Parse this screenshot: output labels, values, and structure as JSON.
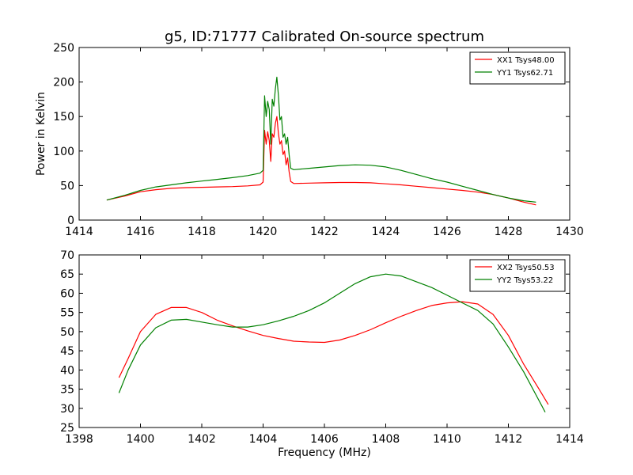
{
  "figure": {
    "title": "g5, ID:71777 Calibrated On-source spectrum"
  },
  "chart_data": [
    {
      "type": "line",
      "ylabel": "Power in Kelvin",
      "xlabel": "",
      "xlim": [
        1414,
        1430
      ],
      "ylim": [
        0,
        250
      ],
      "xticks": [
        "1414",
        "1416",
        "1418",
        "1420",
        "1422",
        "1424",
        "1426",
        "1428",
        "1430"
      ],
      "yticks": [
        "0",
        "50",
        "100",
        "150",
        "200",
        "250"
      ],
      "grid": false,
      "legend_position": "top-right",
      "series": [
        {
          "name": "XX1 Tsys48.00",
          "color": "#ff0000",
          "x": [
            1414.9,
            1415.5,
            1416,
            1416.5,
            1417,
            1417.5,
            1418,
            1418.5,
            1419,
            1419.5,
            1419.9,
            1420.0,
            1420.05,
            1420.1,
            1420.15,
            1420.2,
            1420.25,
            1420.3,
            1420.35,
            1420.4,
            1420.45,
            1420.5,
            1420.55,
            1420.6,
            1420.65,
            1420.7,
            1420.75,
            1420.8,
            1420.85,
            1420.9,
            1421.0,
            1421.5,
            1422,
            1422.5,
            1423,
            1423.5,
            1424,
            1424.5,
            1425,
            1425.5,
            1426,
            1426.5,
            1427,
            1427.5,
            1428,
            1428.5,
            1428.9
          ],
          "y": [
            29,
            35,
            41,
            44,
            46,
            47,
            47.5,
            48,
            48.5,
            49.5,
            51,
            55,
            130,
            110,
            128,
            115,
            85,
            125,
            120,
            140,
            150,
            125,
            110,
            115,
            95,
            100,
            80,
            90,
            70,
            56,
            53,
            53.5,
            54,
            54.5,
            54.5,
            54,
            52.5,
            51,
            49,
            47,
            45,
            43,
            40.5,
            37,
            32,
            26,
            22
          ]
        },
        {
          "name": "YY1 Tsys62.71",
          "color": "#008000",
          "x": [
            1414.9,
            1415.5,
            1416,
            1416.5,
            1417,
            1417.5,
            1418,
            1418.5,
            1419,
            1419.5,
            1419.9,
            1420.0,
            1420.05,
            1420.1,
            1420.15,
            1420.2,
            1420.25,
            1420.3,
            1420.35,
            1420.4,
            1420.45,
            1420.5,
            1420.55,
            1420.6,
            1420.65,
            1420.7,
            1420.75,
            1420.8,
            1420.85,
            1420.9,
            1421.0,
            1421.5,
            1422,
            1422.5,
            1423,
            1423.5,
            1424,
            1424.5,
            1425,
            1425.5,
            1426,
            1426.5,
            1427,
            1427.5,
            1428,
            1428.5,
            1428.9
          ],
          "y": [
            29,
            36,
            43,
            48,
            51,
            54,
            56.5,
            59,
            61.5,
            64.5,
            68,
            72,
            180,
            150,
            172,
            160,
            110,
            175,
            165,
            190,
            207,
            180,
            145,
            150,
            120,
            125,
            110,
            120,
            95,
            75,
            73,
            75,
            77,
            79,
            80,
            79.5,
            77,
            72,
            66,
            60,
            55,
            49,
            43,
            37,
            32,
            28,
            26
          ]
        }
      ]
    },
    {
      "type": "line",
      "ylabel": "",
      "xlabel": "Frequency (MHz)",
      "xlim": [
        1398,
        1414
      ],
      "ylim": [
        25,
        70
      ],
      "xticks": [
        "1398",
        "1400",
        "1402",
        "1404",
        "1406",
        "1408",
        "1410",
        "1412",
        "1414"
      ],
      "yticks": [
        "25",
        "30",
        "35",
        "40",
        "45",
        "50",
        "55",
        "60",
        "65",
        "70"
      ],
      "grid": false,
      "legend_position": "top-right",
      "series": [
        {
          "name": "XX2 Tsys50.53",
          "color": "#ff0000",
          "x": [
            1399.3,
            1399.6,
            1400,
            1400.5,
            1401,
            1401.5,
            1402,
            1402.5,
            1403,
            1403.5,
            1404,
            1404.5,
            1405,
            1405.5,
            1406,
            1406.5,
            1407,
            1407.5,
            1408,
            1408.5,
            1409,
            1409.5,
            1410,
            1410.5,
            1411,
            1411.5,
            1412,
            1412.5,
            1413,
            1413.3
          ],
          "y": [
            38,
            43,
            50,
            54.5,
            56.3,
            56.3,
            55,
            53,
            51.5,
            50.2,
            49,
            48.2,
            47.5,
            47.3,
            47.2,
            47.8,
            49,
            50.5,
            52.3,
            54,
            55.5,
            56.8,
            57.5,
            57.8,
            57.2,
            54.5,
            49,
            41.5,
            35,
            31
          ]
        },
        {
          "name": "YY2 Tsys53.22",
          "color": "#008000",
          "x": [
            1399.3,
            1399.6,
            1400,
            1400.5,
            1401,
            1401.5,
            1402,
            1402.5,
            1403,
            1403.5,
            1404,
            1404.5,
            1405,
            1405.5,
            1406,
            1406.5,
            1407,
            1407.5,
            1408,
            1408.5,
            1409,
            1409.5,
            1410,
            1410.5,
            1411,
            1411.5,
            1412,
            1412.5,
            1413,
            1413.2
          ],
          "y": [
            34,
            40,
            46.5,
            51,
            53,
            53.2,
            52.5,
            51.8,
            51.2,
            51.2,
            51.8,
            52.8,
            54,
            55.5,
            57.5,
            60,
            62.5,
            64.3,
            65,
            64.5,
            63,
            61.5,
            59.5,
            57.5,
            55.5,
            52,
            46,
            39.5,
            32,
            29
          ]
        }
      ]
    }
  ]
}
